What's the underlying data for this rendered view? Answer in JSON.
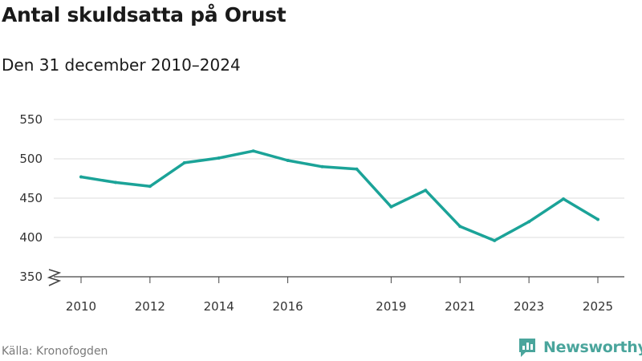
{
  "header": {
    "title": "Antal skuldsatta på Orust",
    "subtitle": "Den 31 december 2010–2024"
  },
  "footer": {
    "source": "Källa: Kronofogden",
    "brand": "Newsworthy"
  },
  "colors": {
    "line": "#1ba398",
    "grid": "#dddddd",
    "brand": "#4aa59c"
  },
  "chart_data": {
    "type": "line",
    "title": "Antal skuldsatta på Orust",
    "subtitle": "Den 31 december 2010–2024",
    "xlabel": "",
    "ylabel": "",
    "ylim": [
      350,
      550
    ],
    "xlim": [
      2010,
      2025
    ],
    "axis_break": true,
    "grid": true,
    "x_ticks": [
      "2010",
      "2012",
      "2014",
      "2016",
      "2019",
      "2021",
      "2023",
      "2025"
    ],
    "y_ticks": [
      "350",
      "400",
      "450",
      "500",
      "550"
    ],
    "series": [
      {
        "name": "Antal skuldsatta",
        "x": [
          2010,
          2011,
          2012,
          2013,
          2014,
          2015,
          2016,
          2017,
          2018,
          2019,
          2020,
          2021,
          2022,
          2023,
          2024,
          2025
        ],
        "values": [
          477,
          470,
          465,
          495,
          501,
          510,
          498,
          490,
          487,
          439,
          460,
          414,
          396,
          420,
          449,
          423
        ]
      }
    ]
  }
}
